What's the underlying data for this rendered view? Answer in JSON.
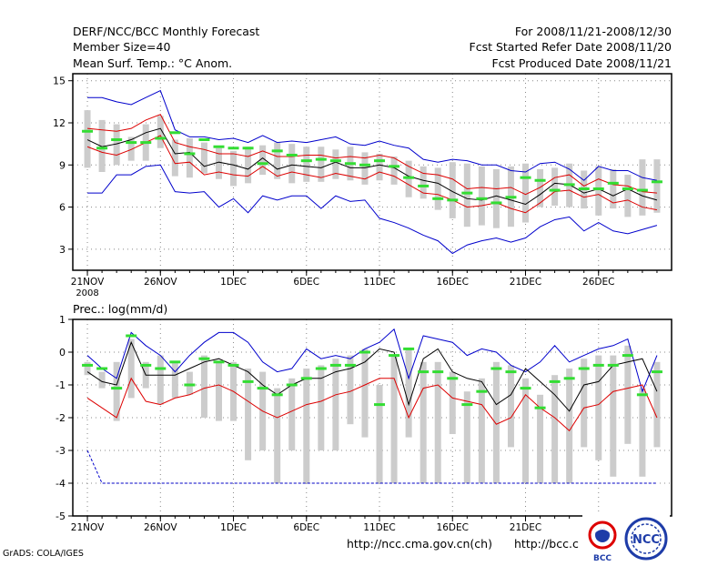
{
  "header": {
    "title": "DERF/NCC/BCC Monthly Forecast",
    "member_size": "Member Size=40",
    "variable": "Mean Surf. Temp.: °C Anom.",
    "forecast_period": "For 2008/11/21-2008/12/30",
    "start_ref_date": "Fcst Started Refer Date 2008/11/20",
    "produced_date": "Fcst Produced Date 2008/11/21"
  },
  "footer": {
    "credit": "GrADS: COLA/IGES",
    "url1": "http://ncc.cma.gov.cn(ch)",
    "url2": "http://bcc.c",
    "logo1_text": "BCC",
    "logo2_text": "NCC"
  },
  "colors": {
    "envelope_max": "#0000cc",
    "envelope_band": "#dd0000",
    "ensemble_mean": "#000000",
    "member_spread_bar": "#cccccc",
    "median_marker": "#33dd33",
    "grid": "#888888"
  },
  "chart_data": [
    {
      "type": "line",
      "title": "Mean Surf. Temp.: °C Anom.",
      "x_tick_labels": [
        "21NOV",
        "26NOV",
        "1DEC",
        "6DEC",
        "11DEC",
        "16DEC",
        "21DEC",
        "26DEC"
      ],
      "x_year_label": "2008",
      "x": [
        1,
        2,
        3,
        4,
        5,
        6,
        7,
        8,
        9,
        10,
        11,
        12,
        13,
        14,
        15,
        16,
        17,
        18,
        19,
        20,
        21,
        22,
        23,
        24,
        25,
        26,
        27,
        28,
        29,
        30,
        31,
        32,
        33,
        34,
        35,
        36,
        37,
        38,
        39,
        40
      ],
      "xlim": [
        0,
        41
      ],
      "ylim": [
        1.5,
        15.5
      ],
      "yticks": [
        3,
        6,
        9,
        12,
        15
      ],
      "grid": true,
      "series": [
        {
          "name": "max",
          "values": [
            13.8,
            13.8,
            13.5,
            13.3,
            13.8,
            14.3,
            11.5,
            11.0,
            11.0,
            10.8,
            10.9,
            10.6,
            11.1,
            10.6,
            10.7,
            10.6,
            10.8,
            11.0,
            10.5,
            10.4,
            10.7,
            10.4,
            10.2,
            9.4,
            9.2,
            9.4,
            9.3,
            9.0,
            9.0,
            8.6,
            8.5,
            9.1,
            9.2,
            8.7,
            7.9,
            8.9,
            8.6,
            8.6,
            8.1,
            7.9
          ]
        },
        {
          "name": "upper",
          "values": [
            11.6,
            11.5,
            11.4,
            11.6,
            12.2,
            12.6,
            10.6,
            10.3,
            10.1,
            9.8,
            9.8,
            9.6,
            10.0,
            9.6,
            9.6,
            9.7,
            9.7,
            9.5,
            9.6,
            9.5,
            9.7,
            9.5,
            8.9,
            8.4,
            8.3,
            8.0,
            7.3,
            7.4,
            7.3,
            7.4,
            6.9,
            7.4,
            8.1,
            8.3,
            7.5,
            8.0,
            7.6,
            7.5,
            7.1,
            7.0
          ]
        },
        {
          "name": "mean",
          "values": [
            10.8,
            10.3,
            10.5,
            10.8,
            11.3,
            11.6,
            9.8,
            9.9,
            8.9,
            9.2,
            9.0,
            8.7,
            9.5,
            8.7,
            9.0,
            8.9,
            8.8,
            9.2,
            8.8,
            8.8,
            9.0,
            8.8,
            8.2,
            7.9,
            7.7,
            7.1,
            6.6,
            6.5,
            6.8,
            6.5,
            6.2,
            6.9,
            7.7,
            7.6,
            7.0,
            7.3,
            6.8,
            7.3,
            6.8,
            6.5
          ]
        },
        {
          "name": "lower",
          "values": [
            10.3,
            9.9,
            9.7,
            10.1,
            10.6,
            11.1,
            9.1,
            9.2,
            8.3,
            8.5,
            8.3,
            8.2,
            8.9,
            8.2,
            8.5,
            8.3,
            8.1,
            8.4,
            8.2,
            8.0,
            8.5,
            8.2,
            7.6,
            7.0,
            6.9,
            6.5,
            6.0,
            6.1,
            6.3,
            5.9,
            5.6,
            6.3,
            7.1,
            7.2,
            6.7,
            6.9,
            6.3,
            6.5,
            6.0,
            5.8
          ]
        },
        {
          "name": "min",
          "values": [
            7.0,
            7.0,
            8.3,
            8.3,
            8.9,
            9.0,
            7.1,
            7.0,
            7.1,
            6.0,
            6.6,
            5.6,
            6.8,
            6.5,
            6.8,
            6.8,
            5.9,
            6.8,
            6.4,
            6.5,
            5.2,
            4.9,
            4.5,
            4.0,
            3.6,
            2.7,
            3.3,
            3.6,
            3.8,
            3.5,
            3.8,
            4.6,
            5.1,
            5.3,
            4.3,
            4.9,
            4.3,
            4.1,
            4.4,
            4.7
          ]
        },
        {
          "name": "median_marker",
          "values": [
            11.4,
            10.2,
            10.8,
            10.6,
            10.6,
            10.9,
            11.3,
            9.8,
            10.8,
            10.3,
            10.2,
            10.2,
            9.1,
            10.0,
            9.7,
            9.3,
            9.4,
            9.3,
            9.1,
            9.0,
            9.3,
            8.9,
            8.1,
            7.5,
            6.6,
            6.5,
            7.0,
            6.6,
            6.3,
            6.7,
            8.1,
            7.9,
            7.2,
            7.6,
            7.3,
            7.3,
            7.7,
            7.3,
            7.2,
            7.8
          ]
        }
      ],
      "spread_bars": {
        "lower": [
          8.8,
          8.5,
          9.0,
          9.3,
          9.3,
          10.2,
          8.2,
          8.1,
          8.4,
          8.0,
          7.5,
          7.7,
          8.3,
          8.0,
          7.7,
          7.8,
          7.8,
          8.0,
          7.9,
          7.6,
          7.9,
          7.6,
          6.7,
          6.6,
          5.8,
          5.2,
          4.6,
          4.7,
          4.5,
          4.6,
          4.9,
          6.0,
          6.1,
          6.0,
          5.9,
          5.4,
          5.9,
          5.3,
          5.4,
          5.6
        ],
        "upper": [
          12.9,
          12.2,
          11.9,
          11.0,
          11.9,
          12.5,
          10.8,
          10.9,
          10.6,
          10.2,
          10.0,
          10.3,
          10.4,
          10.6,
          10.5,
          10.3,
          10.3,
          10.1,
          10.3,
          9.9,
          9.8,
          9.6,
          9.3,
          8.9,
          8.8,
          9.2,
          9.1,
          8.9,
          8.7,
          8.9,
          9.1,
          8.7,
          8.8,
          9.1,
          8.6,
          8.9,
          8.7,
          8.3,
          9.4,
          9.4
        ]
      }
    },
    {
      "type": "line",
      "title": "Prec.: log(mm/d)",
      "x_tick_labels": [
        "21NOV",
        "26NOV",
        "1DEC",
        "6DEC",
        "11DEC",
        "16DEC",
        "21DEC",
        "26DEC"
      ],
      "x_year_label": "2008",
      "x": [
        1,
        2,
        3,
        4,
        5,
        6,
        7,
        8,
        9,
        10,
        11,
        12,
        13,
        14,
        15,
        16,
        17,
        18,
        19,
        20,
        21,
        22,
        23,
        24,
        25,
        26,
        27,
        28,
        29,
        30,
        31,
        32,
        33,
        34,
        35,
        36,
        37,
        38,
        39,
        40
      ],
      "xlim": [
        0,
        41
      ],
      "ylim": [
        -5,
        1
      ],
      "yticks": [
        -5,
        -4,
        -3,
        -2,
        -1,
        0,
        1
      ],
      "grid": true,
      "series": [
        {
          "name": "max",
          "values": [
            -0.1,
            -0.5,
            -0.8,
            0.6,
            0.2,
            -0.1,
            -0.6,
            -0.1,
            0.3,
            0.6,
            0.6,
            0.3,
            -0.3,
            -0.6,
            -0.5,
            0.1,
            -0.2,
            -0.1,
            -0.2,
            0.1,
            0.3,
            0.7,
            -0.8,
            0.5,
            0.4,
            0.3,
            -0.1,
            0.1,
            0.0,
            -0.4,
            -0.6,
            -0.3,
            0.2,
            -0.3,
            -0.1,
            0.1,
            0.2,
            0.4,
            -1.2,
            -0.1
          ]
        },
        {
          "name": "mean",
          "values": [
            -0.6,
            -0.9,
            -1.0,
            0.3,
            -0.7,
            -0.7,
            -0.7,
            -0.5,
            -0.3,
            -0.2,
            -0.4,
            -0.6,
            -1.0,
            -1.3,
            -1.0,
            -0.8,
            -0.8,
            -0.6,
            -0.5,
            -0.3,
            0.1,
            0.0,
            -1.6,
            -0.2,
            0.1,
            -0.6,
            -0.8,
            -0.9,
            -1.6,
            -1.3,
            -0.5,
            -0.9,
            -1.3,
            -1.8,
            -1.0,
            -0.9,
            -0.4,
            -0.3,
            -0.2,
            -1.2
          ]
        },
        {
          "name": "lower",
          "values": [
            -1.4,
            -1.7,
            -2.0,
            -0.8,
            -1.5,
            -1.6,
            -1.4,
            -1.3,
            -1.1,
            -1.0,
            -1.2,
            -1.5,
            -1.8,
            -2.0,
            -1.8,
            -1.6,
            -1.5,
            -1.3,
            -1.2,
            -1.0,
            -0.8,
            -0.8,
            -2.0,
            -1.1,
            -1.0,
            -1.4,
            -1.5,
            -1.6,
            -2.2,
            -2.0,
            -1.3,
            -1.7,
            -2.0,
            -2.4,
            -1.7,
            -1.6,
            -1.2,
            -1.1,
            -1.0,
            -2.0
          ]
        },
        {
          "name": "min_line",
          "values": [
            -3.0,
            -4.0,
            -4.0,
            -4.0,
            -4.0,
            -4.0,
            -4.0,
            -4.0,
            -4.0,
            -4.0,
            -4.0,
            -4.0,
            -4.0,
            -4.0,
            -4.0,
            -4.0,
            -4.0,
            -4.0,
            -4.0,
            -4.0,
            -4.0,
            -4.0,
            -4.0,
            -4.0,
            -4.0,
            -4.0,
            -4.0,
            -4.0,
            -4.0,
            -4.0,
            -4.0,
            -4.0,
            -4.0,
            -4.0,
            -4.0,
            -4.0,
            -4.0,
            -4.0,
            -4.0,
            -4.0
          ]
        },
        {
          "name": "median_marker",
          "values": [
            -0.4,
            -0.5,
            -1.1,
            0.5,
            -0.4,
            -0.5,
            -0.3,
            -1.0,
            -0.2,
            -0.3,
            -0.4,
            -0.9,
            -1.1,
            -1.3,
            -1.0,
            -0.8,
            -0.5,
            -0.4,
            -0.4,
            0.0,
            -1.6,
            -0.1,
            0.1,
            -0.6,
            -0.6,
            -0.8,
            -1.6,
            -1.2,
            -0.5,
            -0.6,
            -1.1,
            -1.7,
            -0.9,
            -0.8,
            -0.5,
            -0.4,
            -0.4,
            -0.1,
            -1.3,
            -0.6
          ]
        }
      ],
      "spread_bars": {
        "lower": [
          -0.7,
          -1.1,
          -2.1,
          -1.4,
          -1.1,
          -1.6,
          -1.4,
          -1.3,
          -2.0,
          -2.1,
          -2.1,
          -3.3,
          -3.0,
          -4.0,
          -3.0,
          -4.0,
          -3.0,
          -3.0,
          -2.2,
          -2.6,
          -4.0,
          -4.0,
          -2.6,
          -4.0,
          -4.0,
          -2.5,
          -4.0,
          -4.0,
          -4.0,
          -2.9,
          -4.0,
          -4.0,
          -4.0,
          -4.0,
          -2.9,
          -3.3,
          -3.8,
          -2.8,
          -3.8,
          -2.9
        ],
        "upper": [
          -0.3,
          -0.6,
          -0.3,
          0.4,
          -0.3,
          -0.1,
          -0.3,
          -0.6,
          -0.1,
          -0.3,
          -0.3,
          -0.5,
          -0.6,
          -1.1,
          -0.8,
          -0.5,
          -0.4,
          -0.2,
          -0.1,
          0.1,
          -1.0,
          -0.1,
          0.1,
          -0.3,
          -0.3,
          -0.6,
          -1.2,
          -0.8,
          -0.3,
          -0.4,
          -0.8,
          -1.3,
          -0.7,
          -0.5,
          -0.2,
          -0.1,
          -0.1,
          0.2,
          -1.1,
          -0.3
        ]
      }
    }
  ]
}
